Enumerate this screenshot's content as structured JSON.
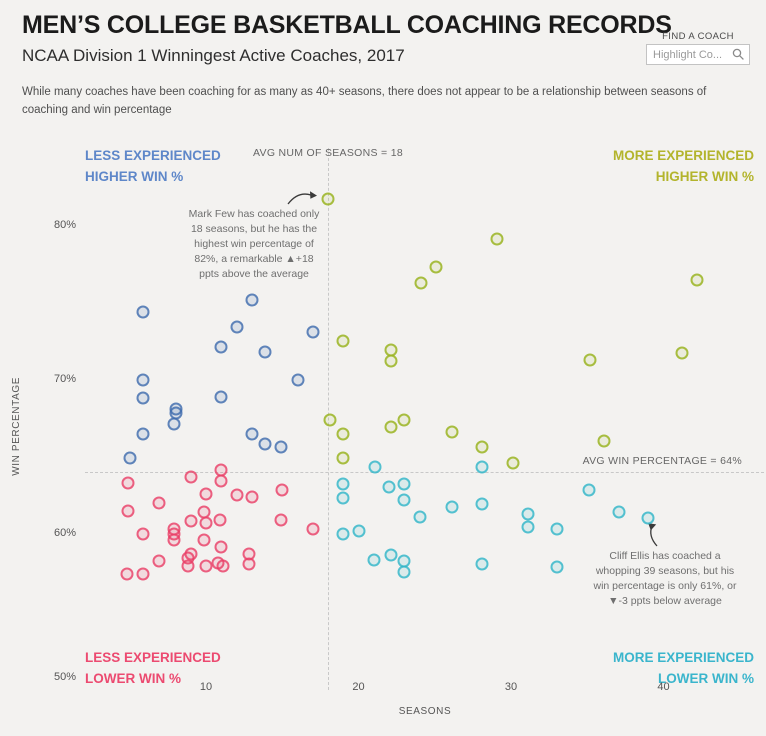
{
  "header": {
    "title": "MEN’S COLLEGE BASKETBALL COACHING RECORDS",
    "subtitle": "NCAA Division 1 Winningest Active Coaches, 2017",
    "description": "While many coaches have been coaching for as many as 40+ seasons, there does not appear to be a relationship between seasons of coaching and win percentage",
    "find_coach_label": "FIND A COACH",
    "search_placeholder": "Highlight Co..."
  },
  "quadrant_labels": {
    "top_left": {
      "line1": "LESS EXPERIENCED",
      "line2": "HIGHER WIN %",
      "color": "#5e87c9"
    },
    "top_right": {
      "line1": "MORE EXPERIENCED",
      "line2": "HIGHER WIN %",
      "color": "#b3b42c"
    },
    "bottom_left": {
      "line1": "LESS EXPERIENCED",
      "line2": "LOWER WIN %",
      "color": "#ec4a70"
    },
    "bottom_right": {
      "line1": "MORE EXPERIENCED",
      "line2": "LOWER WIN %",
      "color": "#3ab5cc"
    }
  },
  "annotations": {
    "avg_seasons_label": "AVG NUM OF SEASONS = 18",
    "avg_win_label": "AVG WIN PERCENTAGE = 64%",
    "mark_few": "Mark Few has coached only\n18 seasons, but he has the\nhighest win percentage of\n82%, a remarkable ▲+18\nppts above the average",
    "cliff_ellis": "Cliff Ellis has coached a\nwhopping 39 seasons, but his\nwin percentage is only 61%, or\n▼-3 ppts below average"
  },
  "chart_data": {
    "type": "scatter",
    "title": "MEN’S COLLEGE BASKETBALL COACHING RECORDS",
    "subtitle": "NCAA Division 1 Winningest Active Coaches, 2017",
    "xlabel": "SEASONS",
    "ylabel": "WIN PERCENTAGE",
    "x_ticks": [
      10,
      20,
      30,
      40
    ],
    "x_tick_labels": [
      "10",
      "20",
      "30",
      "40"
    ],
    "y_ticks": [
      80,
      70,
      60,
      50
    ],
    "y_tick_labels": [
      "80%",
      "70%",
      "60%",
      "50%"
    ],
    "xlim": [
      3.5,
      44.5
    ],
    "ylim": [
      49,
      84
    ],
    "grid": false,
    "legend": "none",
    "avg_seasons": 18,
    "avg_win_pct": 64,
    "highlight_points": [
      {
        "name": "Mark Few",
        "seasons": 18,
        "win_pct": 82
      },
      {
        "name": "Cliff Ellis",
        "seasons": 39,
        "win_pct": 61
      }
    ],
    "series": [
      {
        "name": "less_experienced_higher_win",
        "color": "rgba(63,108,173,0.8)",
        "fill": "rgba(63,108,173,0.13)",
        "points": [
          [
            5.9,
            74.4
          ],
          [
            13,
            75.2
          ],
          [
            12,
            73.4
          ],
          [
            11,
            72.1
          ],
          [
            13.9,
            71.8
          ],
          [
            17,
            73.1
          ],
          [
            5.9,
            70
          ],
          [
            16,
            70
          ],
          [
            5.9,
            68.8
          ],
          [
            8,
            68.1
          ],
          [
            8,
            67.8
          ],
          [
            7.9,
            67.1
          ],
          [
            5.9,
            66.5
          ],
          [
            11,
            68.9
          ],
          [
            13,
            66.5
          ],
          [
            13.9,
            65.8
          ],
          [
            14.9,
            65.6
          ],
          [
            5,
            64.9
          ]
        ]
      },
      {
        "name": "more_experienced_higher_win",
        "color": "rgba(154,180,35,0.85)",
        "fill": "rgba(154,180,35,0.10)",
        "points": [
          [
            18,
            81.7
          ],
          [
            29.1,
            79.1
          ],
          [
            25.1,
            77.3
          ],
          [
            24.1,
            76.3
          ],
          [
            42.2,
            76.5
          ],
          [
            19,
            72.5
          ],
          [
            22.1,
            71.9
          ],
          [
            22.1,
            71.2
          ],
          [
            35.2,
            71.3
          ],
          [
            41.2,
            71.7
          ],
          [
            18.1,
            67.4
          ],
          [
            19,
            66.5
          ],
          [
            22.1,
            66.9
          ],
          [
            23,
            67.4
          ],
          [
            26.1,
            66.6
          ],
          [
            28.1,
            65.6
          ],
          [
            19,
            64.9
          ],
          [
            30.1,
            64.6
          ],
          [
            36.1,
            66
          ]
        ]
      },
      {
        "name": "less_experienced_lower_win",
        "color": "rgba(232,62,103,0.8)",
        "fill": "rgba(232,62,103,0.13)",
        "points": [
          [
            4.9,
            63.3
          ],
          [
            9,
            63.7
          ],
          [
            11,
            64.1
          ],
          [
            11,
            63.4
          ],
          [
            10,
            62.6
          ],
          [
            12,
            62.5
          ],
          [
            13,
            62.4
          ],
          [
            15,
            62.8
          ],
          [
            4.9,
            61.5
          ],
          [
            6.9,
            62
          ],
          [
            9,
            60.8
          ],
          [
            9.9,
            61.4
          ],
          [
            10,
            60.7
          ],
          [
            10.9,
            60.9
          ],
          [
            14.9,
            60.9
          ],
          [
            17,
            60.3
          ],
          [
            5.9,
            60
          ],
          [
            7.9,
            60.3
          ],
          [
            7.9,
            60
          ],
          [
            7.9,
            59.6
          ],
          [
            9.9,
            59.6
          ],
          [
            9,
            58.7
          ],
          [
            11,
            59.1
          ],
          [
            6.9,
            58.2
          ],
          [
            8.8,
            58.4
          ],
          [
            8.8,
            57.9
          ],
          [
            10,
            57.9
          ],
          [
            10.8,
            58.1
          ],
          [
            11.1,
            57.9
          ],
          [
            4.8,
            57.4
          ],
          [
            5.9,
            57.4
          ],
          [
            12.8,
            58.7
          ],
          [
            12.8,
            58
          ]
        ]
      },
      {
        "name": "more_experienced_lower_win",
        "color": "rgba(47,181,200,0.8)",
        "fill": "rgba(47,181,200,0.12)",
        "points": [
          [
            21.1,
            64.3
          ],
          [
            28.1,
            64.3
          ],
          [
            19,
            63.2
          ],
          [
            19,
            62.3
          ],
          [
            22,
            63
          ],
          [
            23,
            63.2
          ],
          [
            23,
            62.2
          ],
          [
            24,
            61.1
          ],
          [
            26.1,
            61.7
          ],
          [
            28.1,
            61.9
          ],
          [
            31.1,
            61.3
          ],
          [
            31.1,
            60.4
          ],
          [
            33,
            60.3
          ],
          [
            35.1,
            62.8
          ],
          [
            37.1,
            61.4
          ],
          [
            39,
            61
          ],
          [
            19,
            60
          ],
          [
            20,
            60.2
          ],
          [
            21,
            58.3
          ],
          [
            22.1,
            58.6
          ],
          [
            23,
            58.2
          ],
          [
            23,
            57.5
          ],
          [
            28.1,
            58
          ],
          [
            33,
            57.8
          ]
        ]
      }
    ]
  }
}
